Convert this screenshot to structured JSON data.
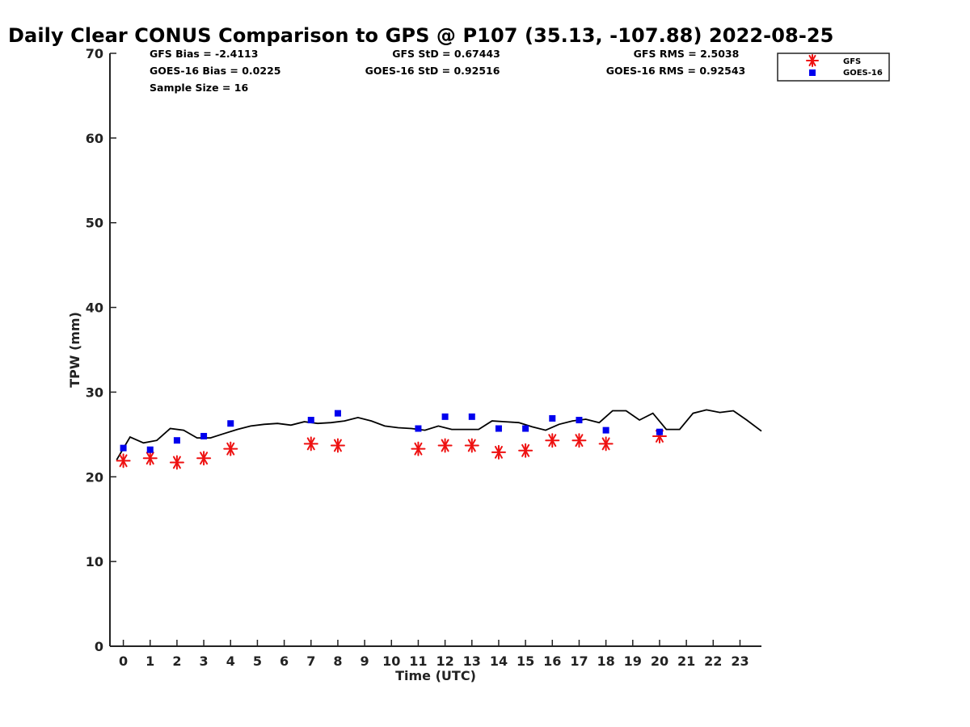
{
  "chart_data": {
    "type": "scatter",
    "title": "Daily Clear CONUS Comparison to GPS @ P107 (35.13, -107.88) 2022-08-25",
    "xlabel": "Time (UTC)",
    "ylabel": "TPW (mm)",
    "xlim": [
      -0.5,
      23.8
    ],
    "ylim": [
      0,
      70
    ],
    "x_ticks": [
      0,
      1,
      2,
      3,
      4,
      5,
      6,
      7,
      8,
      9,
      10,
      11,
      12,
      13,
      14,
      15,
      16,
      17,
      18,
      19,
      20,
      21,
      22,
      23
    ],
    "y_ticks": [
      0,
      10,
      20,
      30,
      40,
      50,
      60,
      70
    ],
    "grid": false,
    "legend_position": "top-right",
    "stats": {
      "gfs_bias": "GFS Bias = -2.4113",
      "goes_bias": "GOES-16 Bias = 0.0225",
      "sample_size": "Sample Size = 16",
      "gfs_std": "GFS StD = 0.67443",
      "goes_std": "GOES-16 StD = 0.92516",
      "gfs_rms": "GFS RMS = 2.5038",
      "goes_rms": "GOES-16 RMS = 0.92543"
    },
    "series": [
      {
        "name": "GFS",
        "marker": "asterisk",
        "color": "#ee1111",
        "points": [
          [
            0,
            21.9
          ],
          [
            1,
            22.2
          ],
          [
            2,
            21.7
          ],
          [
            3,
            22.2
          ],
          [
            4,
            23.3
          ],
          [
            7,
            23.9
          ],
          [
            8,
            23.7
          ],
          [
            11,
            23.3
          ],
          [
            12,
            23.7
          ],
          [
            13,
            23.7
          ],
          [
            14,
            22.9
          ],
          [
            15,
            23.1
          ],
          [
            16,
            24.3
          ],
          [
            17,
            24.3
          ],
          [
            18,
            23.9
          ],
          [
            20,
            24.8
          ]
        ]
      },
      {
        "name": "GOES-16",
        "marker": "square",
        "color": "#0000ee",
        "points": [
          [
            0,
            23.4
          ],
          [
            1,
            23.2
          ],
          [
            2,
            24.3
          ],
          [
            3,
            24.8
          ],
          [
            4,
            26.3
          ],
          [
            7,
            26.7
          ],
          [
            8,
            27.5
          ],
          [
            11,
            25.7
          ],
          [
            12,
            27.1
          ],
          [
            13,
            27.1
          ],
          [
            14,
            25.7
          ],
          [
            15,
            25.7
          ],
          [
            16,
            26.9
          ],
          [
            17,
            26.7
          ],
          [
            18,
            25.5
          ],
          [
            20,
            25.3
          ]
        ]
      },
      {
        "marker": "line",
        "color": "#000000",
        "points": [
          [
            -0.25,
            22.0
          ],
          [
            0.25,
            24.7
          ],
          [
            0.75,
            24.0
          ],
          [
            1.25,
            24.3
          ],
          [
            1.75,
            25.7
          ],
          [
            2.25,
            25.5
          ],
          [
            2.75,
            24.6
          ],
          [
            3.25,
            24.6
          ],
          [
            3.75,
            25.1
          ],
          [
            4.25,
            25.6
          ],
          [
            4.75,
            26.0
          ],
          [
            5.25,
            26.2
          ],
          [
            5.75,
            26.3
          ],
          [
            6.25,
            26.1
          ],
          [
            6.75,
            26.5
          ],
          [
            7.25,
            26.3
          ],
          [
            7.75,
            26.4
          ],
          [
            8.25,
            26.6
          ],
          [
            8.75,
            27.0
          ],
          [
            9.25,
            26.6
          ],
          [
            9.75,
            26.0
          ],
          [
            10.25,
            25.8
          ],
          [
            10.75,
            25.7
          ],
          [
            11.25,
            25.5
          ],
          [
            11.75,
            26.0
          ],
          [
            12.25,
            25.6
          ],
          [
            12.75,
            25.6
          ],
          [
            13.25,
            25.6
          ],
          [
            13.75,
            26.6
          ],
          [
            14.25,
            26.5
          ],
          [
            14.75,
            26.4
          ],
          [
            15.25,
            25.9
          ],
          [
            15.75,
            25.5
          ],
          [
            16.25,
            26.2
          ],
          [
            16.75,
            26.6
          ],
          [
            17.25,
            26.8
          ],
          [
            17.75,
            26.4
          ],
          [
            18.25,
            27.8
          ],
          [
            18.75,
            27.8
          ],
          [
            19.25,
            26.7
          ],
          [
            19.75,
            27.5
          ],
          [
            20.25,
            25.6
          ],
          [
            20.75,
            25.6
          ],
          [
            21.25,
            27.5
          ],
          [
            21.75,
            27.9
          ],
          [
            22.25,
            27.6
          ],
          [
            22.75,
            27.8
          ],
          [
            23.25,
            26.7
          ],
          [
            23.8,
            25.4
          ]
        ]
      }
    ]
  }
}
